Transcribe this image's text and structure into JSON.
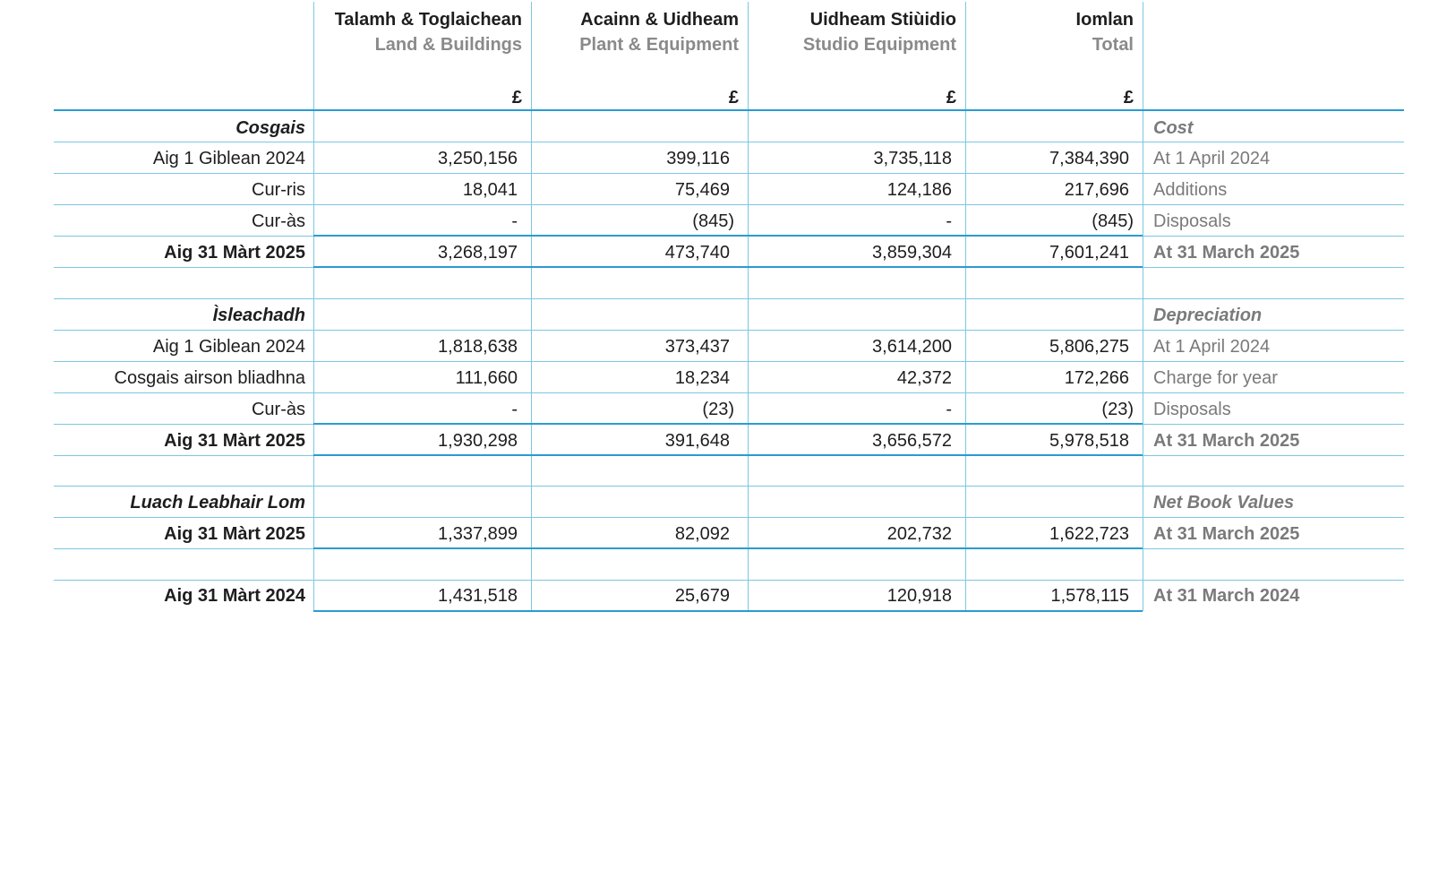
{
  "columns": [
    {
      "gd": "Talamh & Toglaichean",
      "en": "Land & Buildings",
      "currency": "£"
    },
    {
      "gd": "Acainn & Uidheam",
      "en": "Plant & Equipment",
      "currency": "£"
    },
    {
      "gd": "Uidheam Stiùidio",
      "en": "Studio Equipment",
      "currency": "£"
    },
    {
      "gd": "Iomlan",
      "en": "Total",
      "currency": "£"
    }
  ],
  "sections": {
    "cost": {
      "heading_gd": "Cosgais",
      "heading_en": "Cost",
      "rows": [
        {
          "gd": "Aig 1 Giblean 2024",
          "en": "At 1 April 2024",
          "values": [
            "3,250,156",
            "399,116",
            "3,735,118",
            "7,384,390"
          ]
        },
        {
          "gd": "Cur-ris",
          "en": "Additions",
          "values": [
            "18,041",
            "75,469",
            "124,186",
            "217,696"
          ]
        },
        {
          "gd": "Cur-às",
          "en": "Disposals",
          "values": [
            "-",
            "(845)",
            "-",
            "(845)"
          ]
        },
        {
          "gd": "Aig 31 Màrt 2025",
          "en": "At 31 March 2025",
          "values": [
            "3,268,197",
            "473,740",
            "3,859,304",
            "7,601,241"
          ]
        }
      ]
    },
    "depreciation": {
      "heading_gd": "Ìsleachadh",
      "heading_en": "Depreciation",
      "rows": [
        {
          "gd": "Aig 1 Giblean 2024",
          "en": "At 1 April 2024",
          "values": [
            "1,818,638",
            "373,437",
            "3,614,200",
            "5,806,275"
          ]
        },
        {
          "gd": "Cosgais airson bliadhna",
          "en": "Charge for year",
          "values": [
            "111,660",
            "18,234",
            "42,372",
            "172,266"
          ]
        },
        {
          "gd": "Cur-às",
          "en": "Disposals",
          "values": [
            "-",
            "(23)",
            "-",
            "(23)"
          ]
        },
        {
          "gd": "Aig 31 Màrt 2025",
          "en": "At 31 March 2025",
          "values": [
            "1,930,298",
            "391,648",
            "3,656,572",
            "5,978,518"
          ]
        }
      ]
    },
    "nbv": {
      "heading_gd": "Luach Leabhair Lom",
      "heading_en": "Net Book Values",
      "rows": [
        {
          "gd": "Aig 31 Màrt 2025",
          "en": "At 31 March 2025",
          "values": [
            "1,337,899",
            "82,092",
            "202,732",
            "1,622,723"
          ]
        },
        {
          "gd": "Aig 31 Màrt 2024",
          "en": "At 31 March 2024",
          "values": [
            "1,431,518",
            "25,679",
            "120,918",
            "1,578,115"
          ]
        }
      ]
    }
  }
}
